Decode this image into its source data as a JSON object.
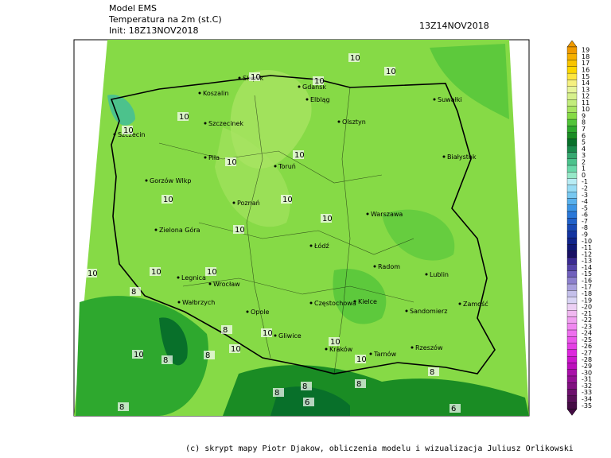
{
  "header": {
    "model": "Model EMS",
    "variable": "Temperatura na 2m (st.C)",
    "init": "Init: 18Z13NOV2018",
    "valid": "13Z14NOV2018"
  },
  "cities": [
    "Koszalin",
    "Słupsk",
    "Gdańsk",
    "Elbląg",
    "Olsztyn",
    "Suwałki",
    "Szczecin",
    "Szczecinek",
    "Piła",
    "Toruń",
    "Białystok",
    "Gorzów Wlkp",
    "Poznań",
    "Warszawa",
    "Zielona Góra",
    "Łódź",
    "Radom",
    "Lublin",
    "Legnica",
    "Wrocław",
    "Wałbrzych",
    "Częstochowa",
    "Kielce",
    "Sandomierz",
    "Zamość",
    "Opole",
    "Gliwice",
    "Kraków",
    "Tarnów",
    "Rzeszów"
  ],
  "contour_labels": [
    10,
    10,
    10,
    10,
    10,
    10,
    10,
    10,
    10,
    10,
    10,
    10,
    10,
    10,
    10,
    10,
    10,
    8,
    10,
    10,
    10,
    8,
    8,
    8,
    8,
    8,
    8,
    6,
    8,
    8,
    6
  ],
  "colorbar": {
    "values": [
      19,
      18,
      17,
      16,
      15,
      14,
      13,
      12,
      11,
      10,
      9,
      8,
      7,
      6,
      5,
      4,
      3,
      2,
      1,
      0,
      -1,
      -2,
      -3,
      -4,
      -5,
      -6,
      -7,
      -8,
      -9,
      -10,
      -11,
      -12,
      -13,
      -14,
      -15,
      -16,
      -17,
      -18,
      -19,
      -20,
      -21,
      -22,
      -23,
      -24,
      -25,
      -26,
      -27,
      -28,
      -29,
      -30,
      -31,
      -32,
      -33,
      -34,
      -35
    ],
    "colors": [
      "#f09a00",
      "#f5b000",
      "#f8c400",
      "#fbd600",
      "#fde640",
      "#f5f080",
      "#e6f49a",
      "#d6f08c",
      "#c2ec7c",
      "#a8e462",
      "#86da46",
      "#52c43a",
      "#2ea82e",
      "#1a8c24",
      "#08702a",
      "#1a8a4c",
      "#36a870",
      "#4cc28c",
      "#6ad8aa",
      "#96e8c8",
      "#b8ecf4",
      "#98dcf4",
      "#78c8f0",
      "#58b0ec",
      "#3c94e4",
      "#2a78d8",
      "#2060c8",
      "#1848b4",
      "#1434a0",
      "#10248a",
      "#101876",
      "#181064",
      "#3a2a90",
      "#5444a8",
      "#7060bc",
      "#8c80cc",
      "#a8a0dc",
      "#c4c0ea",
      "#d8d4f4",
      "#ecd0f4",
      "#f0b8f0",
      "#f0a0f0",
      "#f088f0",
      "#ee70ee",
      "#ea58ea",
      "#e440e4",
      "#dc28dc",
      "#cc18cc",
      "#bc10bc",
      "#a810a8",
      "#941094",
      "#801080",
      "#6c106c",
      "#581058",
      "#440c44"
    ]
  },
  "footer": "(c) skrypt mapy Piotr Djakow, obliczenia modelu i wizualizacja Juliusz Orlikowski"
}
